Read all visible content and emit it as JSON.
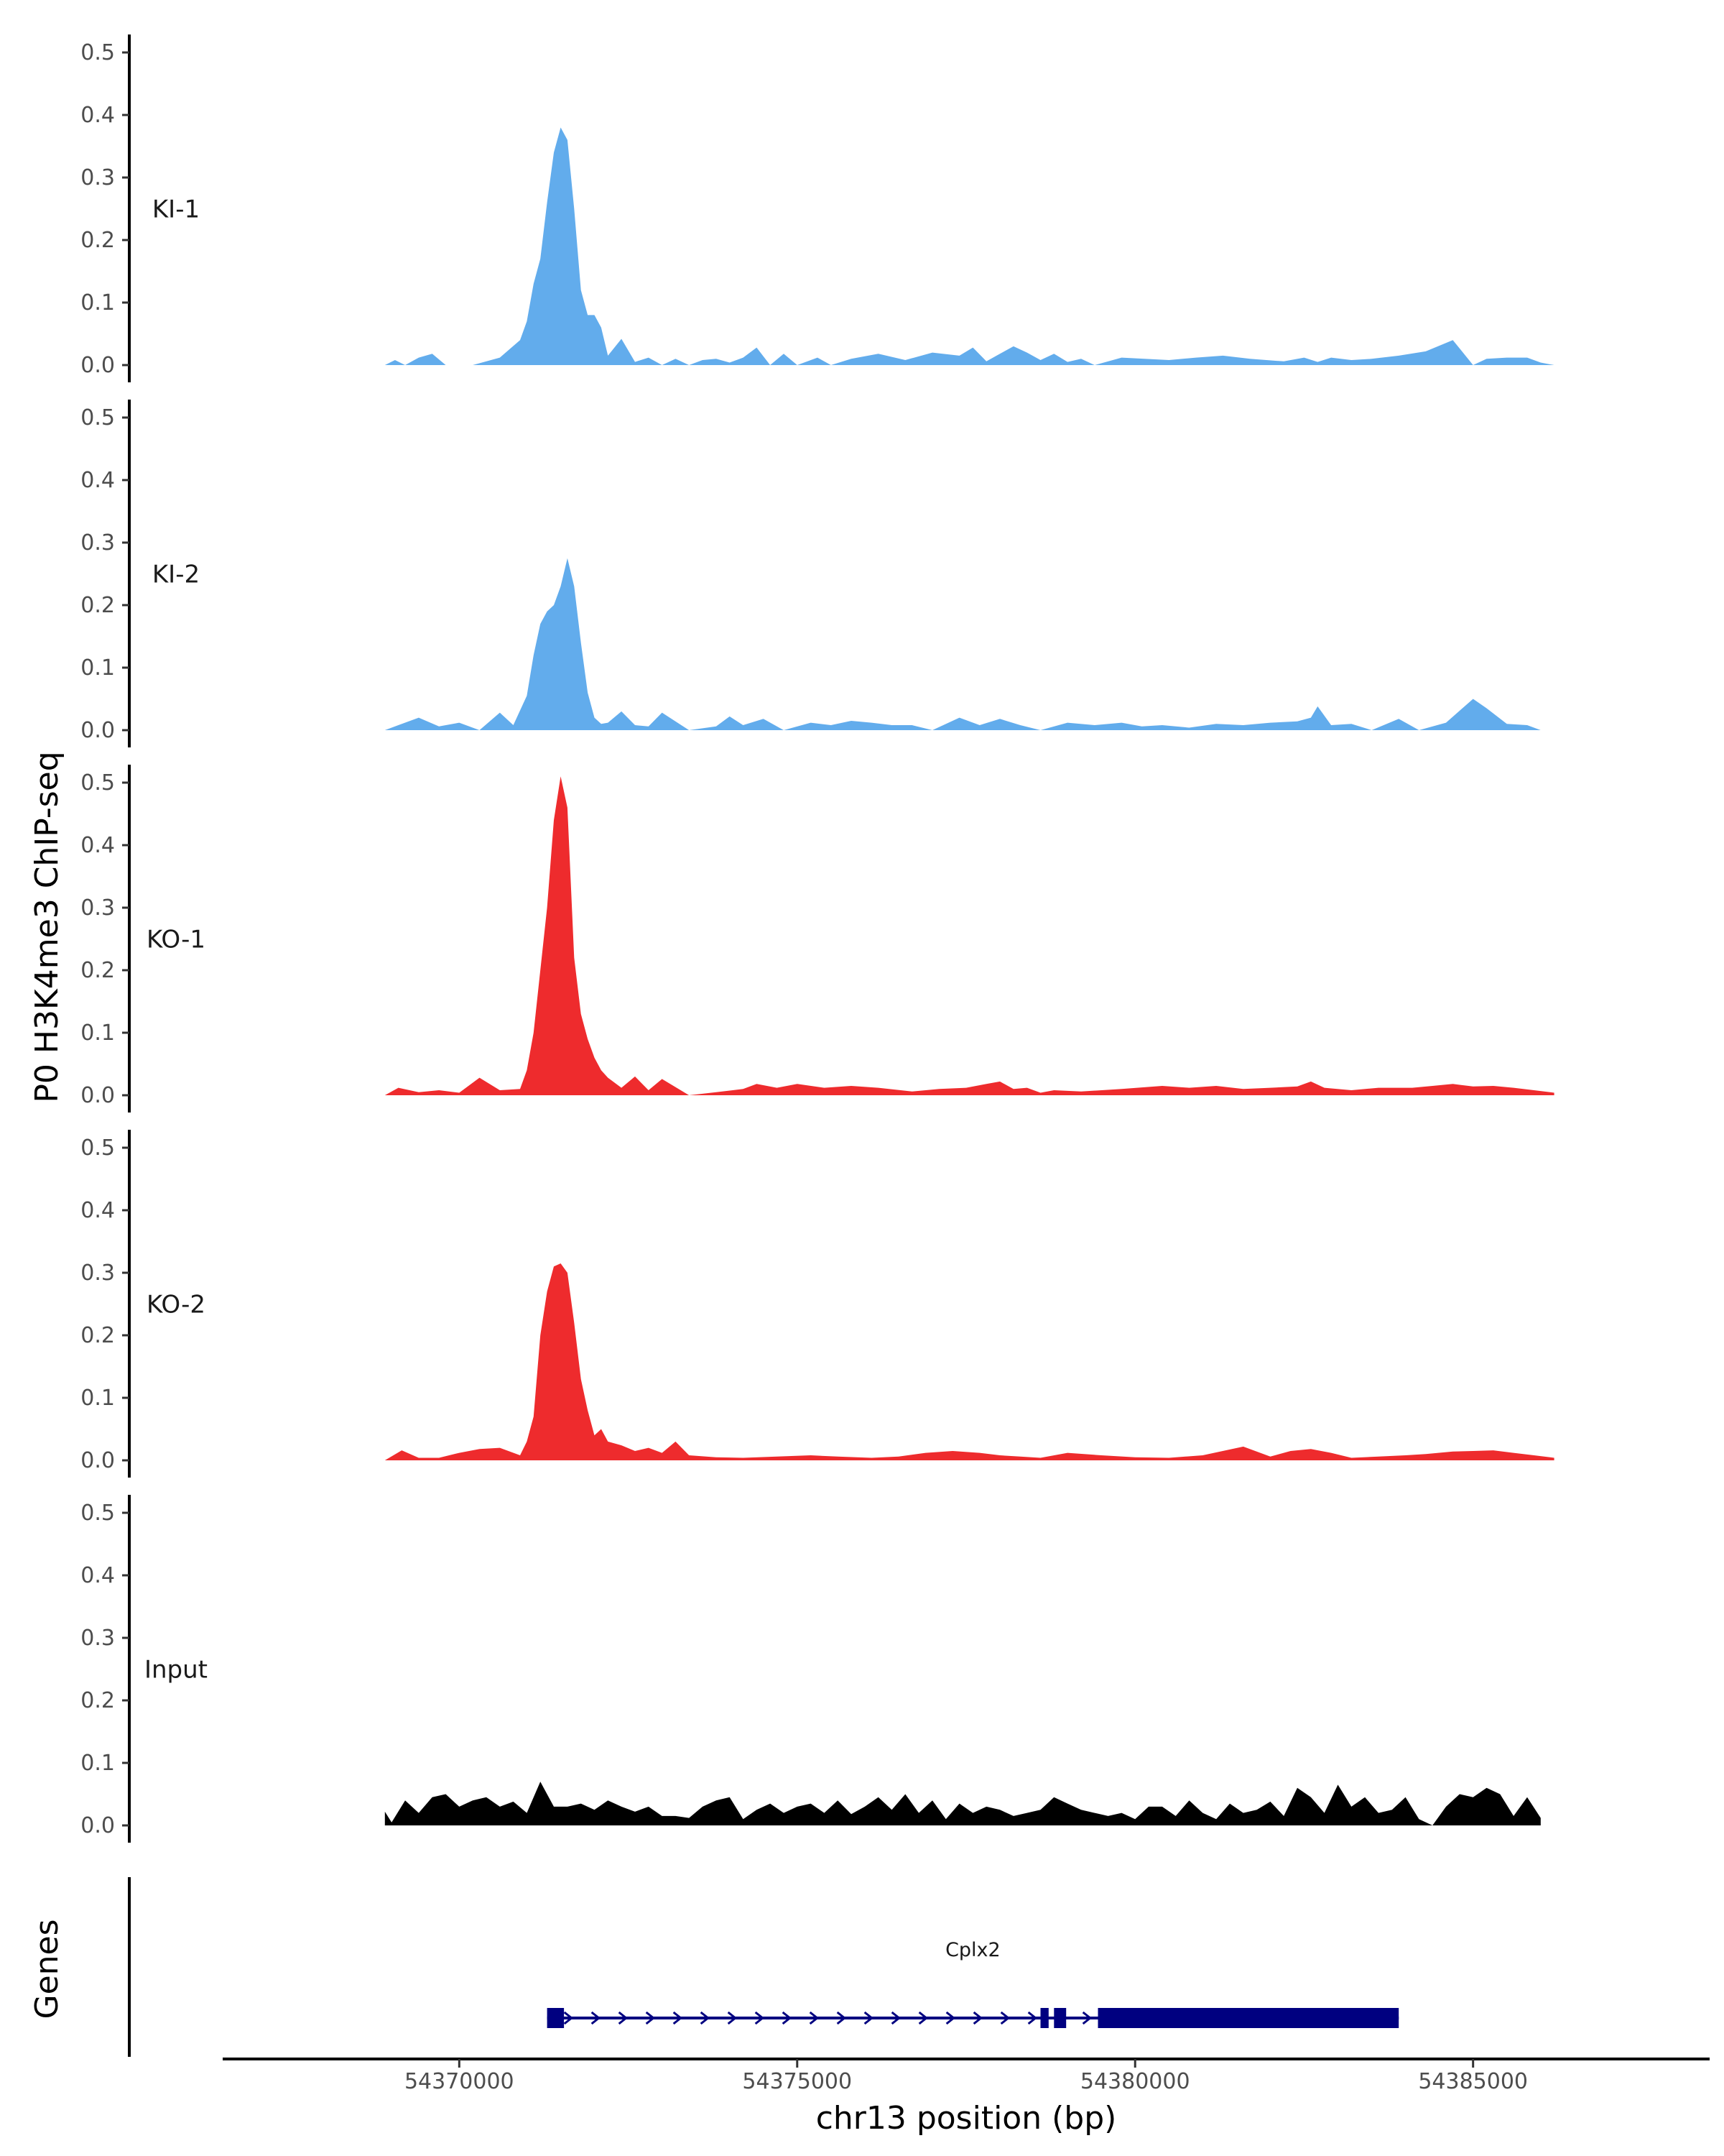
{
  "chart_data": {
    "type": "area",
    "ylabel": "P0 H3K4me3 ChIP-seq",
    "xlabel": "chr13 position (bp)",
    "genes_label": "Genes",
    "xlim": [
      54366500,
      54388500
    ],
    "ylim": [
      0,
      0.53
    ],
    "y_ticks": [
      "0.0",
      "0.1",
      "0.2",
      "0.3",
      "0.4",
      "0.5"
    ],
    "x_ticks": [
      {
        "value": 54370000,
        "label": "54370000"
      },
      {
        "value": 54375000,
        "label": "54375000"
      },
      {
        "value": 54380000,
        "label": "54380000"
      },
      {
        "value": 54385000,
        "label": "54385000"
      }
    ],
    "tracks": [
      {
        "label": "KI-1",
        "color": "#62acec",
        "x": [
          54368900,
          54369050,
          54369200,
          54369400,
          54369600,
          54369800,
          54370200,
          54370600,
          54370900,
          54371000,
          54371100,
          54371200,
          54371300,
          54371400,
          54371500,
          54371600,
          54371700,
          54371800,
          54371900,
          54372000,
          54372100,
          54372200,
          54372400,
          54372600,
          54372800,
          54373000,
          54373200,
          54373400,
          54373600,
          54373800,
          54374000,
          54374200,
          54374400,
          54374600,
          54374800,
          54375000,
          54375300,
          54375500,
          54375800,
          54376200,
          54376600,
          54377000,
          54377400,
          54377600,
          54377800,
          54378000,
          54378200,
          54378400,
          54378600,
          54378800,
          54379000,
          54379200,
          54379400,
          54379800,
          54380500,
          54380900,
          54381300,
          54381700,
          54382200,
          54382500,
          54382700,
          54382900,
          54383200,
          54383500,
          54383900,
          54384300,
          54384700,
          54385000,
          54385200,
          54385500,
          54385800,
          54386000,
          54386200
        ],
        "y": [
          0,
          0.008,
          0,
          0.012,
          0.018,
          0,
          0,
          0.012,
          0.04,
          0.07,
          0.13,
          0.17,
          0.26,
          0.34,
          0.38,
          0.36,
          0.25,
          0.12,
          0.08,
          0.08,
          0.06,
          0.015,
          0.042,
          0.005,
          0.012,
          0,
          0.01,
          0,
          0.008,
          0.01,
          0.004,
          0.012,
          0.028,
          0,
          0.018,
          0,
          0.012,
          0,
          0.01,
          0.018,
          0.008,
          0.02,
          0.015,
          0.028,
          0.006,
          0.018,
          0.03,
          0.02,
          0.008,
          0.018,
          0.005,
          0.01,
          0,
          0.012,
          0.008,
          0.012,
          0.015,
          0.01,
          0.006,
          0.012,
          0.005,
          0.012,
          0.008,
          0.01,
          0.015,
          0.022,
          0.04,
          0,
          0.01,
          0.012,
          0.012,
          0.004,
          0
        ],
        "label_y": 0.25
      },
      {
        "label": "KI-2",
        "color": "#62acec",
        "x": [
          54368900,
          54369100,
          54369400,
          54369700,
          54370000,
          54370300,
          54370600,
          54370800,
          54371000,
          54371100,
          54371200,
          54371300,
          54371400,
          54371500,
          54371600,
          54371700,
          54371800,
          54371900,
          54372000,
          54372100,
          54372200,
          54372400,
          54372600,
          54372800,
          54373000,
          54373400,
          54373800,
          54374000,
          54374200,
          54374500,
          54374800,
          54375200,
          54375500,
          54375800,
          54376100,
          54376400,
          54376700,
          54377000,
          54377400,
          54377700,
          54378000,
          54378300,
          54378600,
          54379000,
          54379400,
          54379800,
          54380100,
          54380400,
          54380800,
          54381200,
          54381600,
          54382000,
          54382400,
          54382600,
          54382700,
          54382900,
          54383200,
          54383500,
          54383900,
          54384200,
          54384600,
          54385000,
          54385200,
          54385500,
          54385800,
          54386000
        ],
        "y": [
          0,
          0.008,
          0.02,
          0.006,
          0.012,
          0,
          0.028,
          0.008,
          0.055,
          0.12,
          0.17,
          0.19,
          0.2,
          0.23,
          0.275,
          0.23,
          0.14,
          0.06,
          0.02,
          0.01,
          0.012,
          0.03,
          0.008,
          0.006,
          0.028,
          0,
          0.006,
          0.022,
          0.008,
          0.018,
          0,
          0.012,
          0.008,
          0.015,
          0.012,
          0.008,
          0.008,
          0,
          0.02,
          0.008,
          0.018,
          0.008,
          0,
          0.012,
          0.008,
          0.012,
          0.006,
          0.008,
          0.004,
          0.01,
          0.008,
          0.012,
          0.014,
          0.02,
          0.038,
          0.008,
          0.01,
          0,
          0.018,
          0,
          0.012,
          0.05,
          0.035,
          0.01,
          0.008,
          0
        ],
        "label_y": 0.25
      },
      {
        "label": "KO-1",
        "color": "#ee2b2d",
        "x": [
          54368900,
          54369100,
          54369400,
          54369700,
          54370000,
          54370300,
          54370600,
          54370900,
          54371000,
          54371100,
          54371200,
          54371300,
          54371400,
          54371500,
          54371600,
          54371700,
          54371800,
          54371900,
          54372000,
          54372100,
          54372200,
          54372400,
          54372600,
          54372800,
          54373000,
          54373400,
          54373800,
          54374200,
          54374400,
          54374700,
          54375000,
          54375400,
          54375800,
          54376200,
          54376700,
          54377100,
          54377500,
          54377800,
          54378000,
          54378200,
          54378400,
          54378600,
          54378800,
          54379200,
          54379800,
          54380400,
          54380800,
          54381200,
          54381600,
          54382000,
          54382400,
          54382600,
          54382800,
          54383200,
          54383600,
          54384100,
          54384400,
          54384700,
          54385000,
          54385300,
          54385600,
          54385900,
          54386200
        ],
        "y": [
          0,
          0.012,
          0.005,
          0.008,
          0.004,
          0.028,
          0.008,
          0.01,
          0.04,
          0.1,
          0.2,
          0.3,
          0.44,
          0.51,
          0.46,
          0.22,
          0.13,
          0.09,
          0.06,
          0.04,
          0.028,
          0.012,
          0.03,
          0.008,
          0.026,
          0,
          0.005,
          0.01,
          0.018,
          0.012,
          0.018,
          0.012,
          0.015,
          0.012,
          0.006,
          0.01,
          0.012,
          0.018,
          0.022,
          0.01,
          0.012,
          0.004,
          0.008,
          0.006,
          0.01,
          0.015,
          0.012,
          0.015,
          0.01,
          0.012,
          0.014,
          0.022,
          0.012,
          0.008,
          0.012,
          0.012,
          0.015,
          0.018,
          0.014,
          0.015,
          0.012,
          0.008,
          0.004
        ],
        "label_y": 0.25
      },
      {
        "label": "KO-2",
        "color": "#ee2b2d",
        "x": [
          54368900,
          54369150,
          54369400,
          54369700,
          54370000,
          54370300,
          54370600,
          54370900,
          54371000,
          54371100,
          54371200,
          54371300,
          54371400,
          54371500,
          54371600,
          54371700,
          54371800,
          54371900,
          54372000,
          54372100,
          54372200,
          54372400,
          54372600,
          54372800,
          54373000,
          54373200,
          54373400,
          54373800,
          54374200,
          54374700,
          54375200,
          54375600,
          54376100,
          54376500,
          54376900,
          54377300,
          54377700,
          54378000,
          54378300,
          54378600,
          54379000,
          54379500,
          54380000,
          54380500,
          54381000,
          54381600,
          54382000,
          54382300,
          54382600,
          54382900,
          54383200,
          54383600,
          54384000,
          54384300,
          54384700,
          54385000,
          54385300,
          54385600,
          54385900,
          54386200
        ],
        "y": [
          0,
          0.016,
          0.004,
          0.004,
          0.012,
          0.018,
          0.02,
          0.008,
          0.03,
          0.07,
          0.2,
          0.27,
          0.31,
          0.315,
          0.3,
          0.22,
          0.13,
          0.08,
          0.04,
          0.05,
          0.03,
          0.024,
          0.015,
          0.02,
          0.012,
          0.03,
          0.008,
          0.005,
          0.004,
          0.006,
          0.008,
          0.006,
          0.004,
          0.006,
          0.012,
          0.015,
          0.012,
          0.008,
          0.006,
          0.004,
          0.012,
          0.008,
          0.005,
          0.004,
          0.008,
          0.022,
          0.006,
          0.015,
          0.018,
          0.012,
          0.004,
          0.006,
          0.008,
          0.01,
          0.014,
          0.015,
          0.016,
          0.012,
          0.008,
          0.004
        ],
        "label_y": 0.25
      },
      {
        "label": "Input",
        "color": "#000000",
        "x": [
          54368900,
          54369000,
          54369200,
          54369400,
          54369600,
          54369800,
          54370000,
          54370200,
          54370400,
          54370600,
          54370800,
          54371000,
          54371200,
          54371400,
          54371600,
          54371800,
          54372000,
          54372200,
          54372400,
          54372600,
          54372800,
          54373000,
          54373200,
          54373400,
          54373600,
          54373800,
          54374000,
          54374200,
          54374400,
          54374600,
          54374800,
          54375000,
          54375200,
          54375400,
          54375600,
          54375800,
          54376000,
          54376200,
          54376400,
          54376600,
          54376800,
          54377000,
          54377200,
          54377400,
          54377600,
          54377800,
          54378000,
          54378200,
          54378400,
          54378600,
          54378800,
          54379000,
          54379200,
          54379400,
          54379600,
          54379800,
          54380000,
          54380200,
          54380400,
          54380600,
          54380800,
          54381000,
          54381200,
          54381400,
          54381600,
          54381800,
          54382000,
          54382200,
          54382400,
          54382600,
          54382800,
          54383000,
          54383200,
          54383400,
          54383600,
          54383800,
          54384000,
          54384200,
          54384400,
          54384600,
          54384800,
          54385000,
          54385200,
          54385400,
          54385600,
          54385800,
          54386000
        ],
        "y": [
          0.022,
          0.005,
          0.04,
          0.02,
          0.045,
          0.05,
          0.03,
          0.04,
          0.045,
          0.03,
          0.038,
          0.02,
          0.07,
          0.03,
          0.03,
          0.035,
          0.025,
          0.04,
          0.03,
          0.022,
          0.03,
          0.015,
          0.015,
          0.012,
          0.03,
          0.04,
          0.045,
          0.01,
          0.025,
          0.035,
          0.02,
          0.03,
          0.035,
          0.02,
          0.04,
          0.018,
          0.03,
          0.045,
          0.025,
          0.05,
          0.02,
          0.04,
          0.01,
          0.035,
          0.02,
          0.03,
          0.025,
          0.015,
          0.02,
          0.025,
          0.045,
          0.035,
          0.025,
          0.02,
          0.015,
          0.02,
          0.01,
          0.03,
          0.03,
          0.015,
          0.04,
          0.02,
          0.01,
          0.035,
          0.02,
          0.025,
          0.038,
          0.015,
          0.06,
          0.045,
          0.02,
          0.065,
          0.03,
          0.045,
          0.02,
          0.025,
          0.045,
          0.01,
          0.0,
          0.03,
          0.05,
          0.045,
          0.06,
          0.05,
          0.015,
          0.045,
          0.012
        ],
        "label_y": 0.25
      }
    ],
    "gene": {
      "name": "Cplx2",
      "color": "#000080",
      "strand": "+",
      "start": 54371300,
      "end": 54383900,
      "exons": [
        [
          54371300,
          54371550
        ],
        [
          54378600,
          54378720
        ],
        [
          54378800,
          54378980
        ],
        [
          54379450,
          54383900
        ]
      ]
    }
  }
}
